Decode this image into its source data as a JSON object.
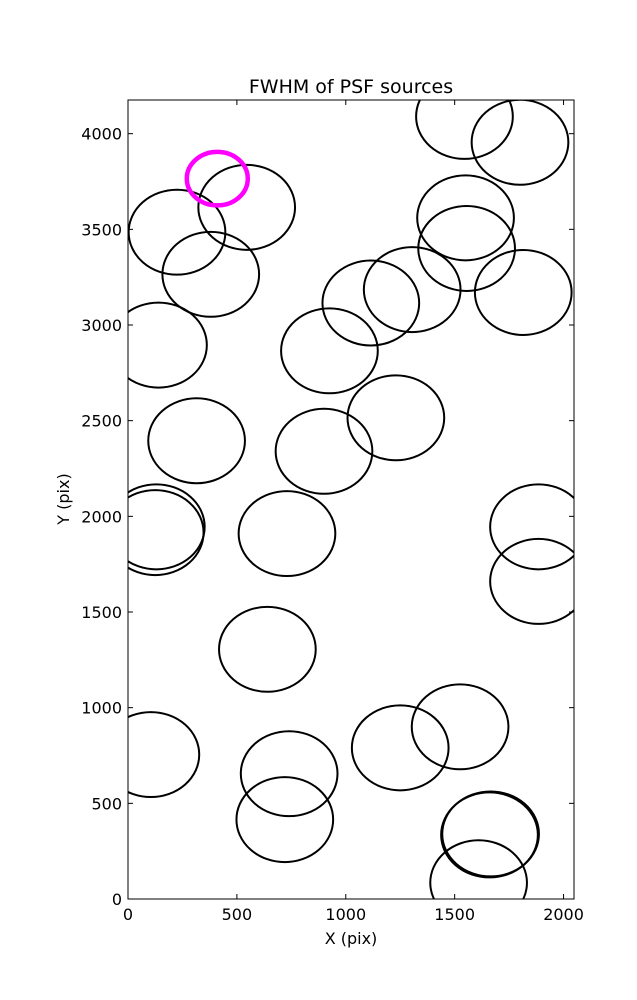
{
  "chart_data": {
    "type": "scatter",
    "title": "FWHM of PSF sources",
    "xlabel": "X (pix)",
    "ylabel": "Y (pix)",
    "xlim": [
      0,
      2048
    ],
    "ylim": [
      0,
      4176
    ],
    "xticks": [
      0,
      500,
      1000,
      1500,
      2000
    ],
    "yticks": [
      0,
      500,
      1000,
      1500,
      2000,
      2500,
      3000,
      3500,
      4000
    ],
    "grid": false,
    "marker": "open-circle",
    "circle_color": "#000000",
    "highlight_color": "#ff00ff",
    "points": [
      {
        "x": 225,
        "y": 3485,
        "r": 222
      },
      {
        "x": 545,
        "y": 3615,
        "r": 222
      },
      {
        "x": 380,
        "y": 3265,
        "r": 222
      },
      {
        "x": 140,
        "y": 2895,
        "r": 222
      },
      {
        "x": 315,
        "y": 2395,
        "r": 222
      },
      {
        "x": 130,
        "y": 1945,
        "r": 222
      },
      {
        "x": 125,
        "y": 1915,
        "r": 222
      },
      {
        "x": 730,
        "y": 1910,
        "r": 222
      },
      {
        "x": 640,
        "y": 1305,
        "r": 222
      },
      {
        "x": 105,
        "y": 755,
        "r": 222
      },
      {
        "x": 740,
        "y": 655,
        "r": 222
      },
      {
        "x": 720,
        "y": 415,
        "r": 222
      },
      {
        "x": 1115,
        "y": 3115,
        "r": 222
      },
      {
        "x": 1305,
        "y": 3185,
        "r": 222
      },
      {
        "x": 925,
        "y": 2865,
        "r": 222
      },
      {
        "x": 1230,
        "y": 2515,
        "r": 222
      },
      {
        "x": 900,
        "y": 2340,
        "r": 222
      },
      {
        "x": 1545,
        "y": 4090,
        "r": 222
      },
      {
        "x": 1800,
        "y": 3955,
        "r": 222
      },
      {
        "x": 1550,
        "y": 3560,
        "r": 222
      },
      {
        "x": 1555,
        "y": 3400,
        "r": 222
      },
      {
        "x": 1815,
        "y": 3170,
        "r": 222
      },
      {
        "x": 1885,
        "y": 1945,
        "r": 222
      },
      {
        "x": 1885,
        "y": 1660,
        "r": 222
      },
      {
        "x": 1250,
        "y": 790,
        "r": 222
      },
      {
        "x": 1525,
        "y": 900,
        "r": 222
      },
      {
        "x": 1665,
        "y": 340,
        "r": 222
      },
      {
        "x": 1660,
        "y": 335,
        "r": 222
      },
      {
        "x": 1610,
        "y": 85,
        "r": 222
      }
    ],
    "highlight_points": [
      {
        "x": 410,
        "y": 3765,
        "r": 140
      }
    ]
  }
}
